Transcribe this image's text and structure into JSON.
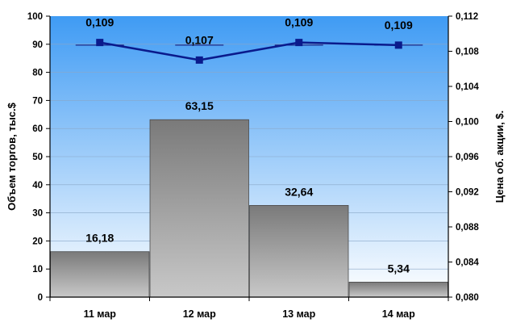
{
  "chart_data": {
    "type": "bar",
    "categories": [
      "11 мар",
      "12 мар",
      "13 мар",
      "14 мар"
    ],
    "bars": {
      "values": [
        16.18,
        63.15,
        32.64,
        5.34
      ],
      "labels": [
        "16,18",
        "63,15",
        "32,64",
        "5,34"
      ],
      "ylabel": "Объем торгов, тыс.$",
      "ylim": [
        0,
        100
      ],
      "yticks": [
        "0",
        "10",
        "20",
        "30",
        "40",
        "50",
        "60",
        "70",
        "80",
        "90",
        "100"
      ]
    },
    "line": {
      "values": [
        0.109,
        0.107,
        0.109,
        0.1087
      ],
      "labels": [
        "0,109",
        "0,107",
        "0,109",
        "0,109"
      ],
      "dash_values": [
        0.1087,
        0.1087,
        0.1087,
        0.1087
      ],
      "ylabel": "Цена об. акции,  $.",
      "ylim": [
        0.08,
        0.112
      ],
      "yticks": [
        "0,080",
        "0,084",
        "0,088",
        "0,092",
        "0,096",
        "0,100",
        "0,104",
        "0,108",
        "0,112"
      ]
    },
    "colors": {
      "background_top": "#3f9bf4",
      "background_bottom": "#ffffff",
      "bar_dark": "#7a7a7a",
      "bar_light": "#c8c8c8",
      "line": "#0a1a8c",
      "dash": "#1a2a8c"
    },
    "grid": true
  }
}
